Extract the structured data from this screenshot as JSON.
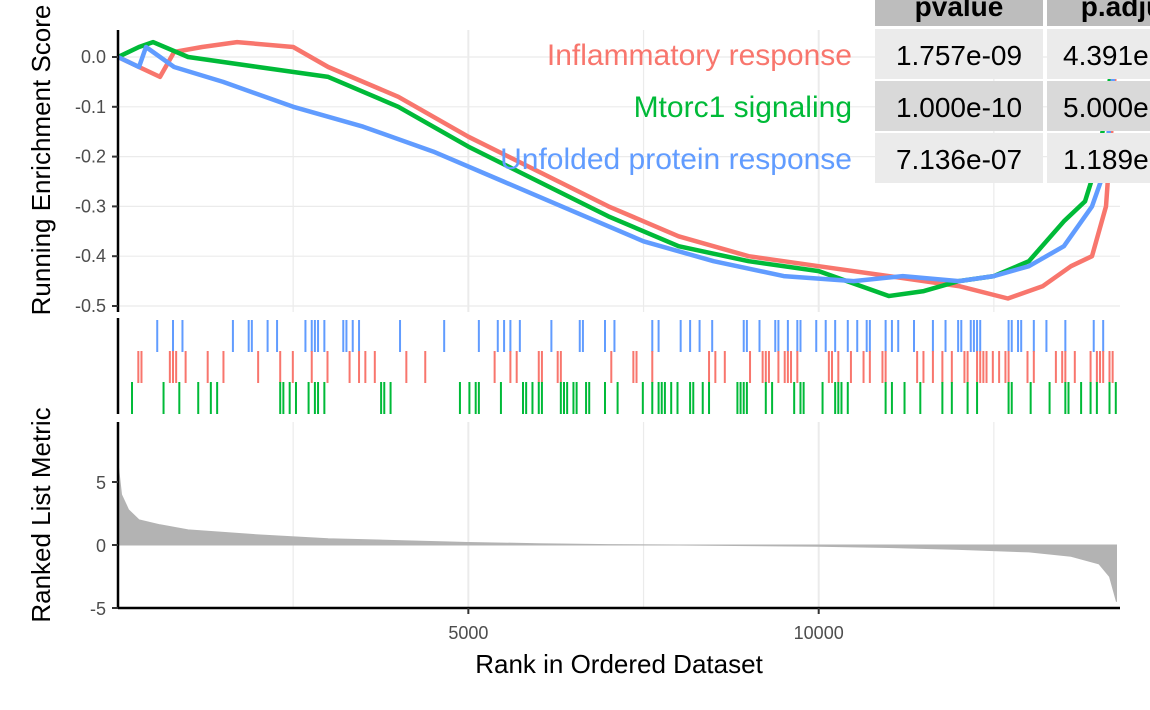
{
  "chart_data": {
    "type": "line",
    "top_panel": {
      "ylabel": "Running Enrichment Score",
      "yticks": [
        0.0,
        -0.1,
        -0.2,
        -0.3,
        -0.4,
        -0.5
      ],
      "ytick_labels": [
        "0.0",
        "-0.1",
        "-0.2",
        "-0.3",
        "-0.4",
        "-0.5"
      ],
      "ylim": [
        -0.5,
        0.05
      ],
      "series": [
        {
          "name": "Inflammatory response",
          "color": "#F8766D",
          "points": [
            [
              0,
              0.0
            ],
            [
              300,
              -0.02
            ],
            [
              600,
              -0.04
            ],
            [
              800,
              0.01
            ],
            [
              1200,
              0.02
            ],
            [
              1700,
              0.03
            ],
            [
              2500,
              0.02
            ],
            [
              3000,
              -0.02
            ],
            [
              4000,
              -0.08
            ],
            [
              5000,
              -0.16
            ],
            [
              6000,
              -0.23
            ],
            [
              7000,
              -0.3
            ],
            [
              8000,
              -0.36
            ],
            [
              9000,
              -0.4
            ],
            [
              10000,
              -0.42
            ],
            [
              11000,
              -0.44
            ],
            [
              12000,
              -0.46
            ],
            [
              12700,
              -0.485
            ],
            [
              13200,
              -0.46
            ],
            [
              13600,
              -0.42
            ],
            [
              13900,
              -0.4
            ],
            [
              14100,
              -0.3
            ],
            [
              14200,
              -0.1
            ],
            [
              14250,
              0.05
            ]
          ]
        },
        {
          "name": "Mtorc1 signaling",
          "color": "#00BA38",
          "points": [
            [
              0,
              0.0
            ],
            [
              300,
              0.02
            ],
            [
              500,
              0.03
            ],
            [
              1000,
              0.0
            ],
            [
              2000,
              -0.02
            ],
            [
              3000,
              -0.04
            ],
            [
              4000,
              -0.1
            ],
            [
              5000,
              -0.18
            ],
            [
              6000,
              -0.25
            ],
            [
              7000,
              -0.32
            ],
            [
              8000,
              -0.38
            ],
            [
              9000,
              -0.41
            ],
            [
              10000,
              -0.43
            ],
            [
              11000,
              -0.48
            ],
            [
              11500,
              -0.47
            ],
            [
              12000,
              -0.45
            ],
            [
              12500,
              -0.44
            ],
            [
              13000,
              -0.41
            ],
            [
              13500,
              -0.33
            ],
            [
              13800,
              -0.29
            ],
            [
              14000,
              -0.2
            ],
            [
              14250,
              0.05
            ]
          ]
        },
        {
          "name": "Unfolded protein response",
          "color": "#619CFF",
          "points": [
            [
              0,
              0.0
            ],
            [
              300,
              -0.02
            ],
            [
              400,
              0.02
            ],
            [
              800,
              -0.02
            ],
            [
              1500,
              -0.05
            ],
            [
              2500,
              -0.1
            ],
            [
              3500,
              -0.14
            ],
            [
              4500,
              -0.19
            ],
            [
              5500,
              -0.25
            ],
            [
              6500,
              -0.31
            ],
            [
              7500,
              -0.37
            ],
            [
              8500,
              -0.41
            ],
            [
              9500,
              -0.44
            ],
            [
              10500,
              -0.45
            ],
            [
              11200,
              -0.44
            ],
            [
              12000,
              -0.45
            ],
            [
              12500,
              -0.44
            ],
            [
              13000,
              -0.42
            ],
            [
              13500,
              -0.38
            ],
            [
              13900,
              -0.3
            ],
            [
              14100,
              -0.22
            ],
            [
              14250,
              0.05
            ]
          ]
        }
      ]
    },
    "table": {
      "headers": [
        "pvalue",
        "p.adju"
      ],
      "rows": [
        {
          "label": "Inflammatory response",
          "pvalue": "1.757e-09",
          "padj": "4.391e"
        },
        {
          "label": "Mtorc1 signaling",
          "pvalue": "1.000e-10",
          "padj": "5.000e"
        },
        {
          "label": "Unfolded protein response",
          "pvalue": "7.136e-07",
          "padj": "1.189e"
        }
      ]
    },
    "bottom_panel": {
      "ylabel": "Ranked List Metric",
      "yticks": [
        5,
        0,
        -5
      ],
      "ytick_labels": [
        "5",
        "0",
        "-5"
      ],
      "ylim": [
        -5,
        9
      ],
      "type": "area",
      "color": "#B3B3B3",
      "points": [
        [
          0,
          6.5
        ],
        [
          50,
          4.0
        ],
        [
          150,
          2.8
        ],
        [
          300,
          2.0
        ],
        [
          600,
          1.6
        ],
        [
          1000,
          1.2
        ],
        [
          2000,
          0.8
        ],
        [
          3000,
          0.5
        ],
        [
          4000,
          0.35
        ],
        [
          5000,
          0.2
        ],
        [
          6000,
          0.1
        ],
        [
          7000,
          0.03
        ],
        [
          8000,
          0.0
        ],
        [
          9000,
          -0.05
        ],
        [
          10000,
          -0.1
        ],
        [
          11000,
          -0.2
        ],
        [
          12000,
          -0.35
        ],
        [
          13000,
          -0.55
        ],
        [
          13600,
          -0.9
        ],
        [
          14000,
          -1.5
        ],
        [
          14150,
          -2.5
        ],
        [
          14250,
          -4.5
        ]
      ]
    },
    "xlabel": "Rank in Ordered Dataset",
    "xticks": [
      5000,
      10000
    ],
    "xtick_labels": [
      "5000",
      "10000"
    ],
    "xlim": [
      0,
      14300
    ],
    "grid": true
  }
}
